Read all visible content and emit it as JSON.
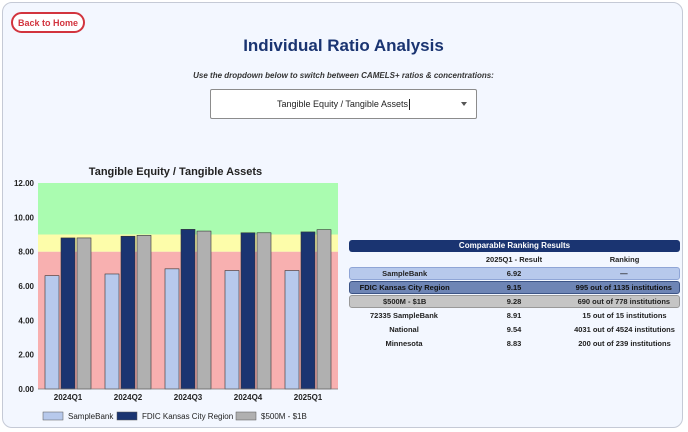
{
  "header": {
    "back_label": "Back to Home",
    "title": "Individual Ratio Analysis",
    "instructions": "Use the dropdown below to switch between CAMELS+ ratios & concentrations:"
  },
  "dropdown": {
    "selected": "Tangible Equity / Tangible Assets"
  },
  "chart_data": {
    "type": "bar",
    "title": "Tangible Equity / Tangible Assets",
    "categories": [
      "2024Q1",
      "2024Q2",
      "2024Q3",
      "2024Q4",
      "2025Q1"
    ],
    "series": [
      {
        "name": "SampleBank",
        "values": [
          6.6,
          6.7,
          7.0,
          6.9,
          6.9
        ]
      },
      {
        "name": "FDIC Kansas City Region",
        "values": [
          8.8,
          8.9,
          9.3,
          9.1,
          9.15
        ]
      },
      {
        "name": "$500M - $1B",
        "values": [
          8.8,
          8.95,
          9.2,
          9.1,
          9.28
        ]
      }
    ],
    "yticks": [
      "0.00",
      "2.00",
      "4.00",
      "6.00",
      "8.00",
      "10.00",
      "12.00"
    ],
    "ylim": [
      0,
      12
    ],
    "bands": [
      {
        "from": 0,
        "to": 8,
        "color": "#f8b0b0"
      },
      {
        "from": 8,
        "to": 9,
        "color": "#fdfdaa"
      },
      {
        "from": 9,
        "to": 12,
        "color": "#aafcb0"
      }
    ],
    "colors": [
      "#b7c9ec",
      "#1a3471",
      "#b0b0b0"
    ],
    "legend": "bottom",
    "grid": false
  },
  "ranking": {
    "title": "Comparable Ranking Results",
    "columns": [
      "",
      "2025Q1 - Result",
      "Ranking"
    ],
    "rows": [
      {
        "name": "SampleBank",
        "result": "6.92",
        "ranking": "—",
        "style": "row-sample"
      },
      {
        "name": "FDIC Kansas City Region",
        "result": "9.15",
        "ranking": "995 out of 1135 institutions",
        "style": "row-fdic"
      },
      {
        "name": "$500M - $1B",
        "result": "9.28",
        "ranking": "690 out of 778 institutions",
        "style": "row-peer"
      },
      {
        "name": "72335 SampleBank",
        "result": "8.91",
        "ranking": "15 out of 15 institutions",
        "style": ""
      },
      {
        "name": "National",
        "result": "9.54",
        "ranking": "4031 out of 4524 institutions",
        "style": ""
      },
      {
        "name": "Minnesota",
        "result": "8.83",
        "ranking": "200 out of 239 institutions",
        "style": ""
      }
    ]
  }
}
